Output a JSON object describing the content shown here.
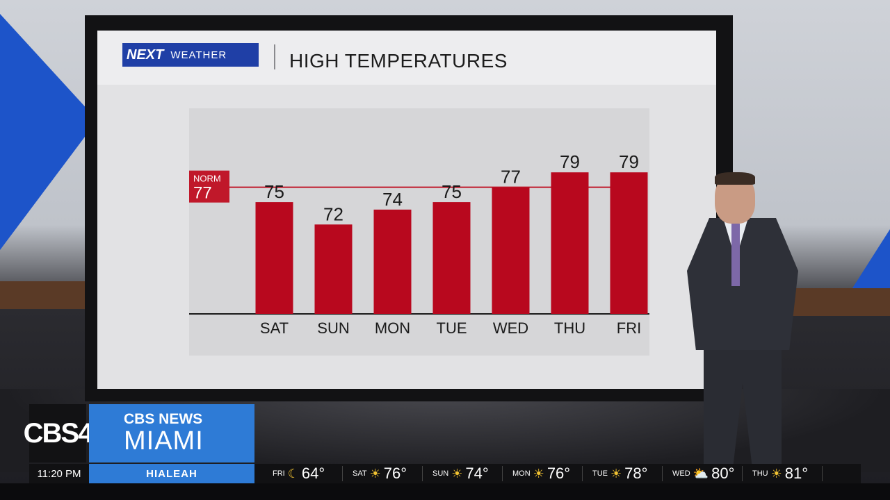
{
  "colors": {
    "bar": "#b8081e",
    "norm_line": "#c0182a",
    "accent_blue": "#2e7bd6",
    "sun": "#f1c232"
  },
  "header": {
    "logo_next": "NEXT",
    "logo_weather": "WEATHER",
    "title": "HIGH TEMPERATURES"
  },
  "chart_data": {
    "type": "bar",
    "title": "HIGH TEMPERATURES",
    "categories": [
      "SAT",
      "SUN",
      "MON",
      "TUE",
      "WED",
      "THU",
      "FRI"
    ],
    "values": [
      75,
      72,
      74,
      75,
      77,
      79,
      79
    ],
    "reference_line": {
      "label": "NORM",
      "value": 77
    },
    "ylim": [
      60,
      82
    ],
    "grid": false,
    "legend": "none"
  },
  "branding": {
    "station": "CBS4",
    "line1": "CBS NEWS",
    "line2": "MIAMI"
  },
  "ticker": {
    "time": "11:20 PM",
    "location": "HIALEAH",
    "forecast": [
      {
        "day": "FRI",
        "icon": "moon-icon",
        "temp": "64°"
      },
      {
        "day": "SAT",
        "icon": "sun-icon",
        "temp": "76°"
      },
      {
        "day": "SUN",
        "icon": "sun-icon",
        "temp": "74°"
      },
      {
        "day": "MON",
        "icon": "sun-icon",
        "temp": "76°"
      },
      {
        "day": "TUE",
        "icon": "sun-icon",
        "temp": "78°"
      },
      {
        "day": "WED",
        "icon": "partly-cloudy-icon",
        "temp": "80°"
      },
      {
        "day": "THU",
        "icon": "sun-icon",
        "temp": "81°"
      }
    ]
  }
}
